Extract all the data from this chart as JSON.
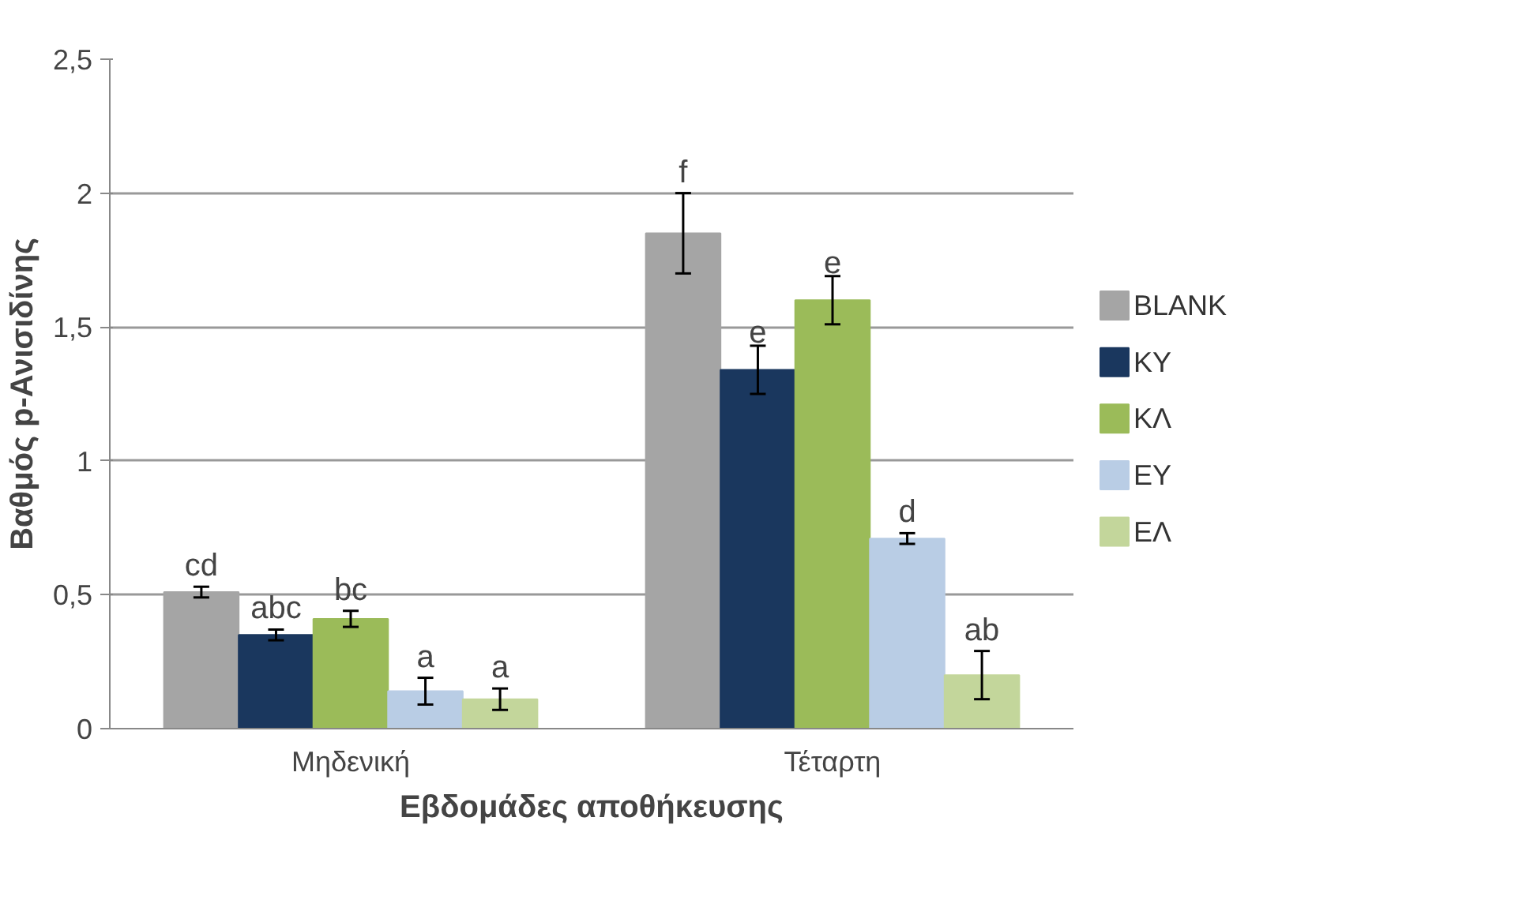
{
  "chart_data": {
    "type": "bar",
    "xlabel": "Εβδομάδες αποθήκευσης",
    "ylabel": "Βαθμός p-Ανισιδίνης",
    "categories": [
      "Μηδενική",
      "Τέταρτη"
    ],
    "series": [
      {
        "name": "BLANK",
        "color": "#a5a5a5",
        "values": [
          0.51,
          1.85
        ],
        "errors": [
          0.02,
          0.15
        ]
      },
      {
        "name": "ΚΥ",
        "color": "#1a375e",
        "values": [
          0.35,
          1.34
        ],
        "errors": [
          0.02,
          0.09
        ]
      },
      {
        "name": "ΚΛ",
        "color": "#9bbb59",
        "values": [
          0.41,
          1.6
        ],
        "errors": [
          0.03,
          0.09
        ]
      },
      {
        "name": "ΕΥ",
        "color": "#b9cde5",
        "values": [
          0.14,
          0.71
        ],
        "errors": [
          0.05,
          0.02
        ]
      },
      {
        "name": "ΕΛ",
        "color": "#c3d69b",
        "values": [
          0.11,
          0.2
        ],
        "errors": [
          0.04,
          0.09
        ]
      }
    ],
    "annotations": [
      "cd",
      "abc",
      "bc",
      "a",
      "a",
      "f",
      "e",
      "e",
      "d",
      "ab"
    ],
    "ylim": [
      0,
      2.5
    ],
    "yticks": [
      0,
      {
        "value": 0.5,
        "label": "0,5"
      },
      1,
      {
        "value": 1.5,
        "label": "1,5"
      },
      2,
      {
        "value": 2.5,
        "label": "2,5"
      }
    ],
    "grid": "y",
    "legend": "right"
  }
}
